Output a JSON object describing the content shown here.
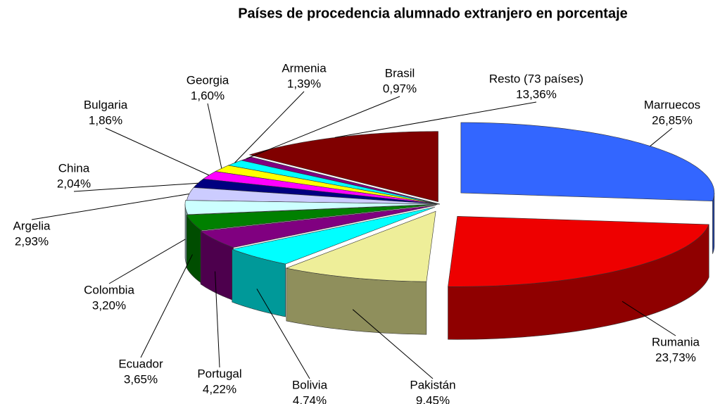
{
  "chart_data": {
    "type": "pie",
    "title": "Países de procedencia alumnado extranjero en porcentaje",
    "categories": [
      "Marruecos",
      "Rumania",
      "Pakistán",
      "Bolivia",
      "Portugal",
      "Ecuador",
      "Colombia",
      "Argelia",
      "China",
      "Bulgaria",
      "Georgia",
      "Armenia",
      "Brasil",
      "Resto (73 países)"
    ],
    "values": [
      26.85,
      23.73,
      9.45,
      4.74,
      4.22,
      3.65,
      3.2,
      2.93,
      2.04,
      1.86,
      1.6,
      1.39,
      0.97,
      13.36
    ],
    "value_labels": [
      "26,85%",
      "23,73%",
      "9,45%",
      "4,74%",
      "4,22%",
      "3,65%",
      "3,20%",
      "2,93%",
      "2,04%",
      "1,86%",
      "1,60%",
      "1,39%",
      "0,97%",
      "13,36%"
    ],
    "colors": [
      "#3366ff",
      "#ee0000",
      "#eeee99",
      "#00ffff",
      "#800080",
      "#008000",
      "#ccffff",
      "#ccccff",
      "#000080",
      "#ff00ff",
      "#ffff00",
      "#00ffff",
      "#800080",
      "#800000"
    ]
  }
}
